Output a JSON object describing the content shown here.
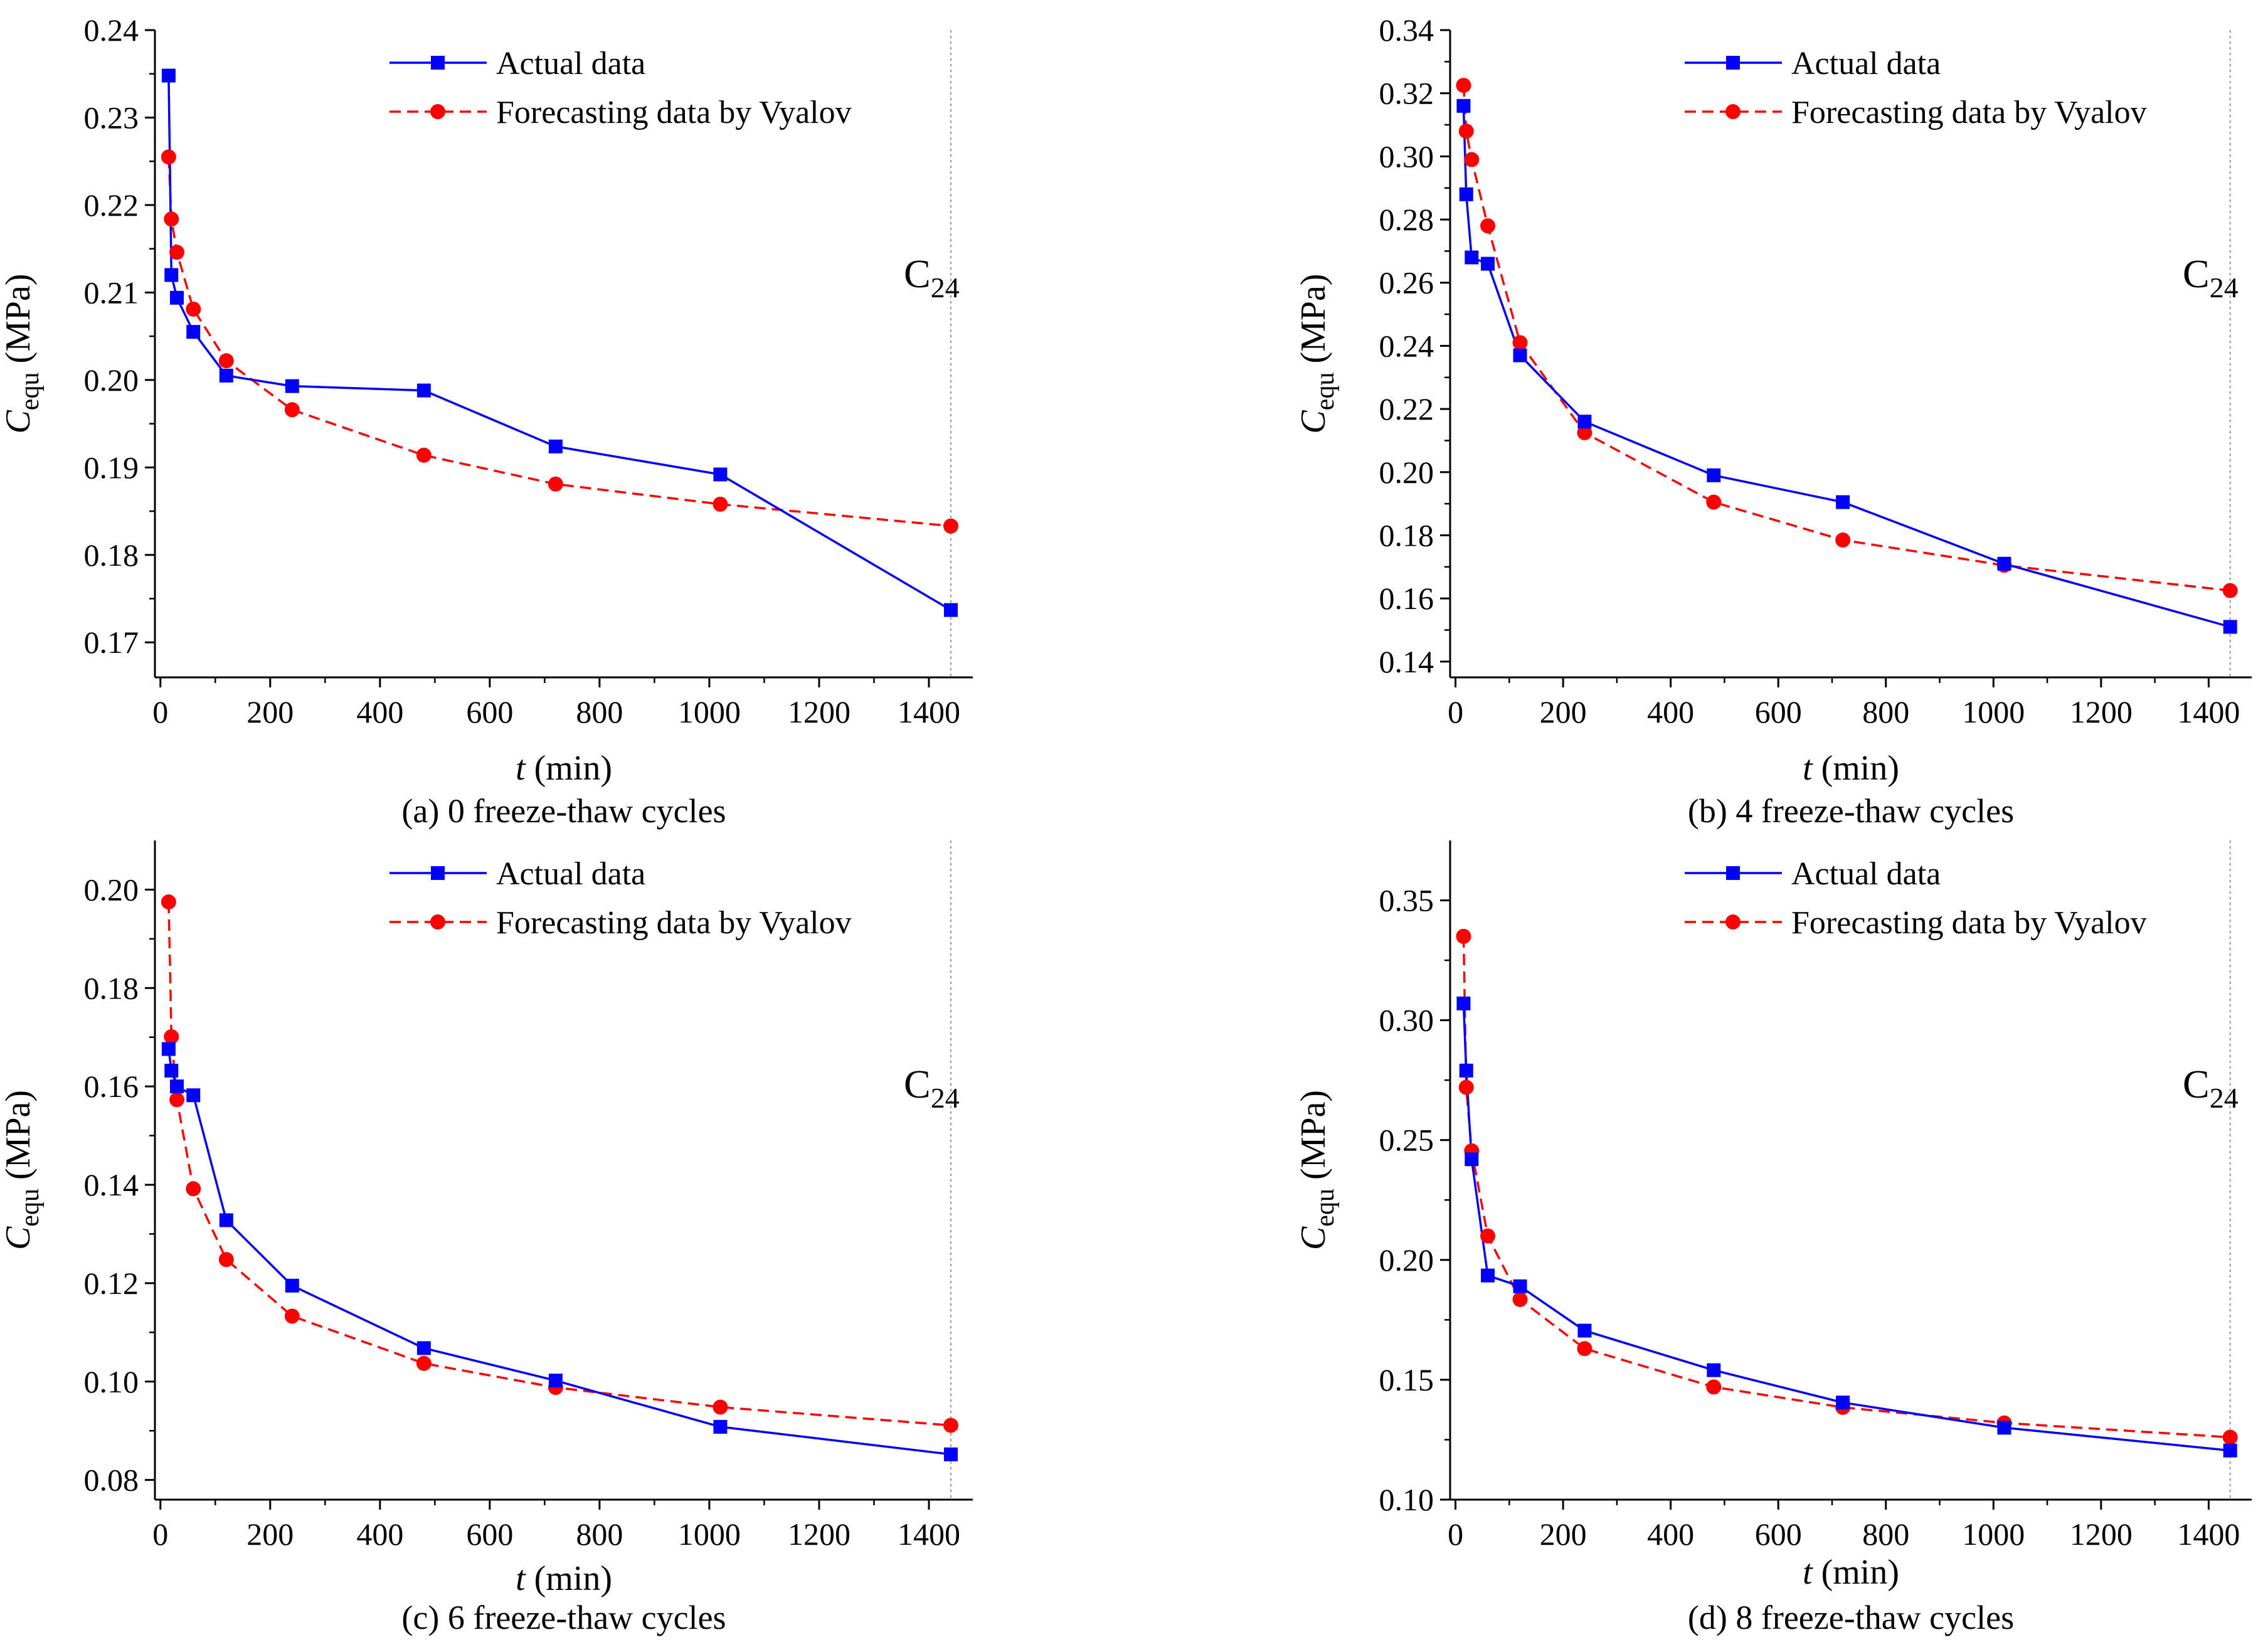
{
  "legend": {
    "actual": "Actual data",
    "forecast": "Forecasting data by Vyalov"
  },
  "colors": {
    "actual": "#0000ff",
    "forecast": "#ff0000",
    "axis": "#000000",
    "refline": "#999999"
  },
  "chart_data": [
    {
      "type": "line",
      "caption": "(a) 0 freeze-thaw cycles",
      "annotation_main": "C",
      "annotation_sub": "24",
      "xlabel_var": "t",
      "xlabel_unit": " (min)",
      "ylabel_var": "C",
      "ylabel_sub": "equ",
      "ylabel_unit": " (MPa)",
      "xlim": [
        -10,
        1480
      ],
      "ylim": [
        0.166,
        0.24
      ],
      "xticks": [
        0,
        200,
        400,
        600,
        800,
        1000,
        1200,
        1400
      ],
      "yticks": [
        0.17,
        0.18,
        0.19,
        0.2,
        0.21,
        0.22,
        0.23,
        0.24
      ],
      "ytick_labels": [
        "0.17",
        "0.18",
        "0.19",
        "0.20",
        "0.21",
        "0.22",
        "0.23",
        "0.24"
      ],
      "legend_position": "top-right",
      "grid": false,
      "series": [
        {
          "name": "Actual data",
          "x": [
            15,
            20,
            30,
            60,
            120,
            240,
            480,
            720,
            1020,
            1440
          ],
          "y": [
            0.2348,
            0.212,
            0.2094,
            0.2055,
            0.2005,
            0.1993,
            0.1988,
            0.1924,
            0.1892,
            0.1737
          ]
        },
        {
          "name": "Forecasting data by Vyalov",
          "x": [
            15,
            20,
            30,
            60,
            120,
            240,
            480,
            720,
            1020,
            1440
          ],
          "y": [
            0.2255,
            0.2184,
            0.2146,
            0.2081,
            0.2022,
            0.1966,
            0.1914,
            0.1881,
            0.1858,
            0.1833
          ]
        }
      ]
    },
    {
      "type": "line",
      "caption": "(b) 4 freeze-thaw cycles",
      "annotation_main": "C",
      "annotation_sub": "24",
      "xlabel_var": "t",
      "xlabel_unit": " (min)",
      "ylabel_var": "C",
      "ylabel_sub": "equ",
      "ylabel_unit": " (MPa)",
      "xlim": [
        -10,
        1480
      ],
      "ylim": [
        0.135,
        0.34
      ],
      "xticks": [
        0,
        200,
        400,
        600,
        800,
        1000,
        1200,
        1400
      ],
      "yticks": [
        0.14,
        0.16,
        0.18,
        0.2,
        0.22,
        0.24,
        0.26,
        0.28,
        0.3,
        0.32,
        0.34
      ],
      "ytick_labels": [
        "0.14",
        "0.16",
        "0.18",
        "0.20",
        "0.22",
        "0.24",
        "0.26",
        "0.28",
        "0.30",
        "0.32",
        "0.34"
      ],
      "legend_position": "top-right",
      "grid": false,
      "series": [
        {
          "name": "Actual data",
          "x": [
            15,
            20,
            30,
            60,
            120,
            240,
            480,
            720,
            1020,
            1440
          ],
          "y": [
            0.316,
            0.288,
            0.268,
            0.266,
            0.237,
            0.216,
            0.199,
            0.1905,
            0.171,
            0.151
          ]
        },
        {
          "name": "Forecasting data by Vyalov",
          "x": [
            15,
            20,
            30,
            60,
            120,
            240,
            480,
            720,
            1020,
            1440
          ],
          "y": [
            0.3225,
            0.308,
            0.299,
            0.278,
            0.241,
            0.2125,
            0.1905,
            0.1785,
            0.1705,
            0.1625
          ]
        }
      ]
    },
    {
      "type": "line",
      "caption": "(c) 6 freeze-thaw cycles",
      "annotation_main": "C",
      "annotation_sub": "24",
      "xlabel_var": "t",
      "xlabel_unit": " (min)",
      "ylabel_var": "C",
      "ylabel_sub": "equ",
      "ylabel_unit": " (MPa)",
      "xlim": [
        -10,
        1480
      ],
      "ylim": [
        0.076,
        0.21
      ],
      "xticks": [
        0,
        200,
        400,
        600,
        800,
        1000,
        1200,
        1400
      ],
      "yticks": [
        0.08,
        0.1,
        0.12,
        0.14,
        0.16,
        0.18,
        0.2
      ],
      "ytick_labels": [
        "0.08",
        "0.10",
        "0.12",
        "0.14",
        "0.16",
        "0.18",
        "0.20"
      ],
      "legend_position": "top-right",
      "grid": false,
      "series": [
        {
          "name": "Actual data",
          "x": [
            15,
            20,
            30,
            60,
            120,
            240,
            480,
            720,
            1020,
            1440
          ],
          "y": [
            0.1676,
            0.1632,
            0.16,
            0.1582,
            0.1328,
            0.1195,
            0.1068,
            0.1002,
            0.0908,
            0.0852
          ]
        },
        {
          "name": "Forecasting data by Vyalov",
          "x": [
            15,
            20,
            30,
            60,
            120,
            240,
            480,
            720,
            1020,
            1440
          ],
          "y": [
            0.1975,
            0.1701,
            0.1573,
            0.1392,
            0.1248,
            0.1133,
            0.1037,
            0.0988,
            0.0948,
            0.0911
          ]
        }
      ]
    },
    {
      "type": "line",
      "caption": "(d) 8 freeze-thaw cycles",
      "annotation_main": "C",
      "annotation_sub": "24",
      "xlabel_var": "t",
      "xlabel_unit": " (min)",
      "ylabel_var": "C",
      "ylabel_sub": "equ",
      "ylabel_unit": " (MPa)",
      "xlim": [
        -10,
        1480
      ],
      "ylim": [
        0.1,
        0.375
      ],
      "xticks": [
        0,
        200,
        400,
        600,
        800,
        1000,
        1200,
        1400
      ],
      "yticks": [
        0.1,
        0.15,
        0.2,
        0.25,
        0.3,
        0.35
      ],
      "ytick_labels": [
        "0.10",
        "0.15",
        "0.20",
        "0.25",
        "0.30",
        "0.35"
      ],
      "legend_position": "top-right",
      "grid": false,
      "series": [
        {
          "name": "Actual data",
          "x": [
            15,
            20,
            30,
            60,
            120,
            240,
            480,
            720,
            1020,
            1440
          ],
          "y": [
            0.307,
            0.279,
            0.242,
            0.1935,
            0.189,
            0.1705,
            0.154,
            0.1405,
            0.13,
            0.1205
          ]
        },
        {
          "name": "Forecasting data by Vyalov",
          "x": [
            15,
            20,
            30,
            60,
            120,
            240,
            480,
            720,
            1020,
            1440
          ],
          "y": [
            0.335,
            0.272,
            0.2455,
            0.21,
            0.1835,
            0.163,
            0.147,
            0.1385,
            0.132,
            0.126
          ]
        }
      ]
    }
  ]
}
